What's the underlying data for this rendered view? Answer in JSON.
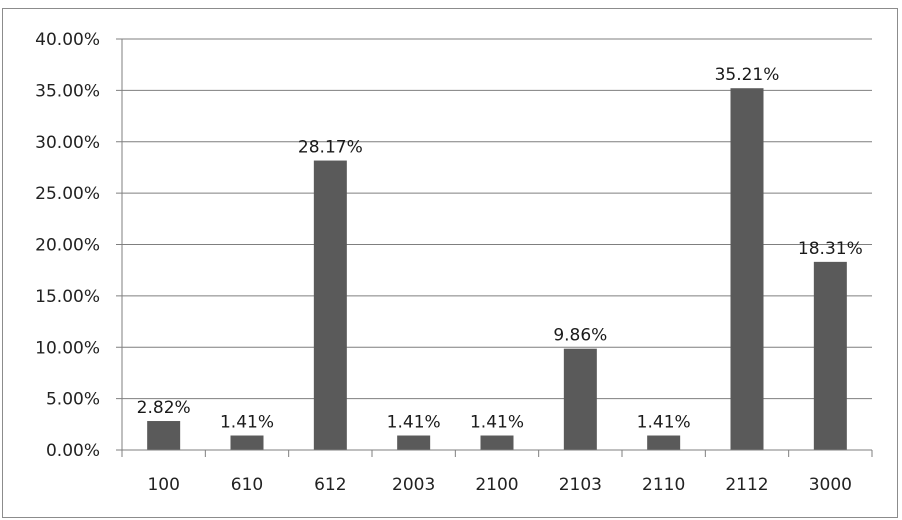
{
  "chart_data": {
    "type": "bar",
    "title": "",
    "xlabel": "",
    "ylabel": "",
    "categories": [
      "100",
      "610",
      "612",
      "2003",
      "2100",
      "2103",
      "2110",
      "2112",
      "3000"
    ],
    "values": [
      2.82,
      1.41,
      28.17,
      1.41,
      1.41,
      9.86,
      1.41,
      35.21,
      18.31
    ],
    "value_labels": [
      "2.82%",
      "1.41%",
      "28.17%",
      "1.41%",
      "1.41%",
      "9.86%",
      "1.41%",
      "35.21%",
      "18.31%"
    ],
    "y_ticks": [
      0,
      5,
      10,
      15,
      20,
      25,
      30,
      35,
      40
    ],
    "y_tick_labels": [
      "0.00%",
      "5.00%",
      "10.00%",
      "15.00%",
      "20.00%",
      "25.00%",
      "30.00%",
      "35.00%",
      "40.00%"
    ],
    "ylim": [
      0,
      40
    ],
    "grid": true,
    "legend": "none",
    "colors": {
      "bar": "#5a5a5a",
      "grid": "#7f7f7f",
      "axis": "#7f7f7f",
      "text": "#222222"
    }
  }
}
